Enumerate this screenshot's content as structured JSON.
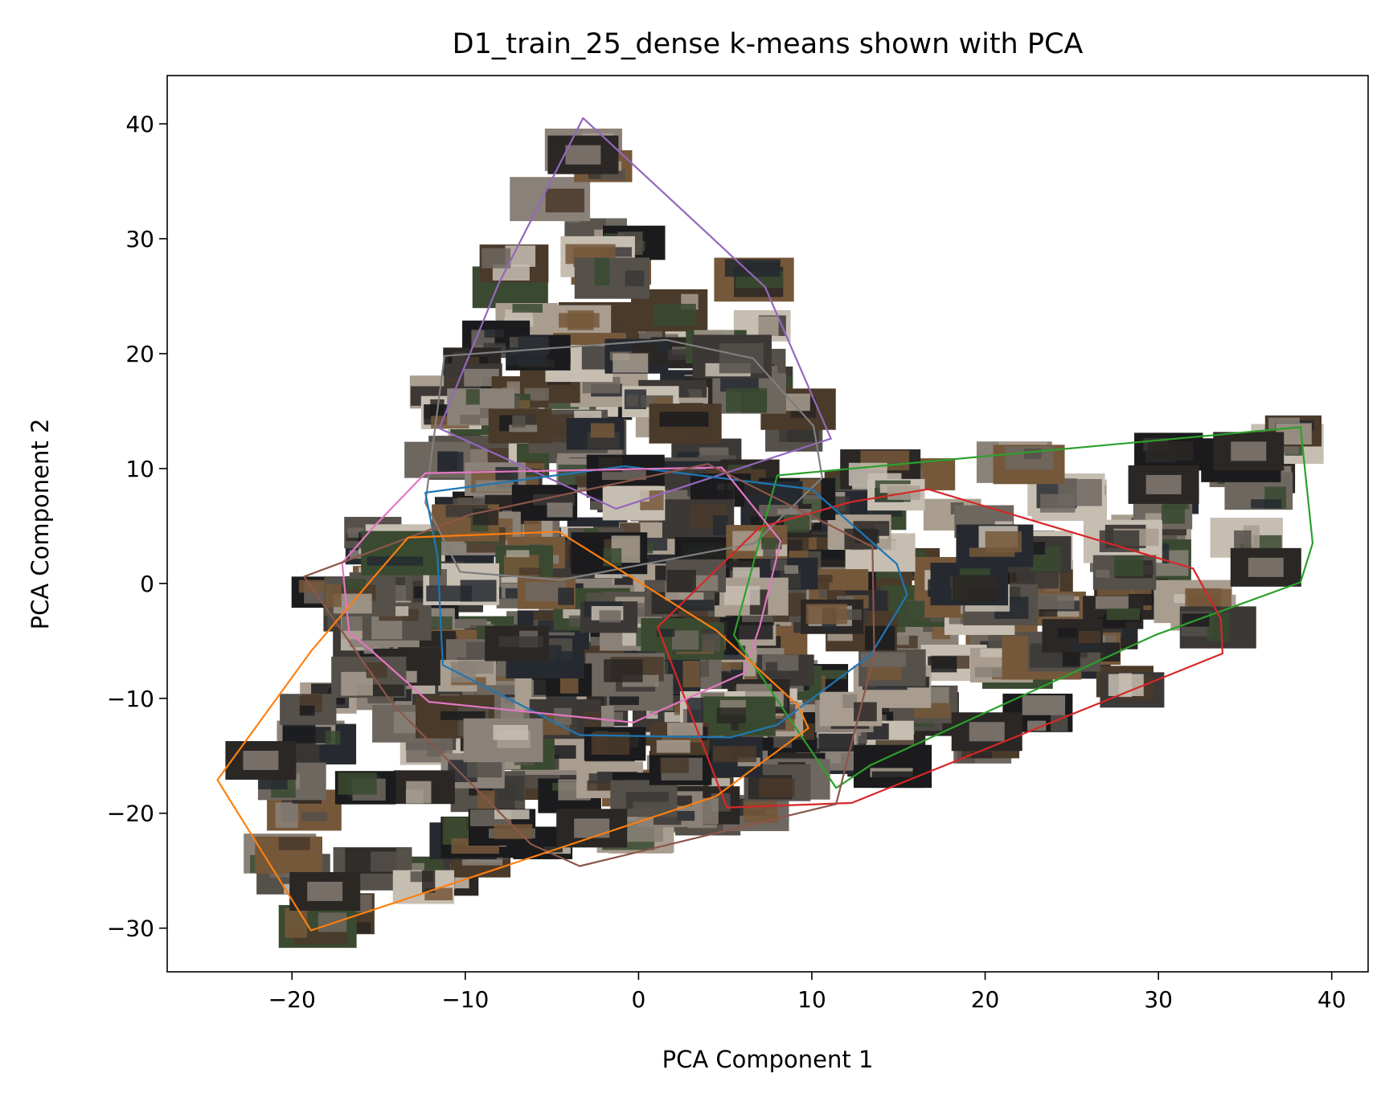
{
  "chart_data": {
    "type": "scatter",
    "title": "D1_train_25_dense k-means shown with PCA",
    "xlabel": "PCA Component 1",
    "ylabel": "PCA Component 2",
    "xlim": [
      -27.2,
      42.1
    ],
    "ylim": [
      -33.8,
      44.2
    ],
    "xticks": [
      -20,
      -10,
      0,
      10,
      20,
      30,
      40
    ],
    "yticks": [
      -30,
      -20,
      -10,
      0,
      10,
      20,
      30,
      40
    ],
    "xtick_labels": [
      "−20",
      "−10",
      "0",
      "10",
      "20",
      "30",
      "40"
    ],
    "ytick_labels": [
      "−30",
      "−20",
      "−10",
      "0",
      "10",
      "20",
      "30",
      "40"
    ],
    "grid": false,
    "legend": "none",
    "markers": "image thumbnails of kitchen scenes",
    "series": [
      {
        "color": "#9467bd",
        "hull": [
          [
            -3.2,
            40.5
          ],
          [
            7.3,
            25.8
          ],
          [
            11.1,
            12.6
          ],
          [
            -1.3,
            6.5
          ],
          [
            -11.5,
            13.5
          ],
          [
            -8.1,
            26.0
          ]
        ]
      },
      {
        "color": "#7f7f7f",
        "hull": [
          [
            1.6,
            21.2
          ],
          [
            -11.2,
            19.8
          ],
          [
            -12.3,
            7.0
          ],
          [
            -10.3,
            1.0
          ],
          [
            -4.5,
            0.3
          ],
          [
            6.7,
            3.5
          ],
          [
            10.6,
            9.2
          ],
          [
            10.1,
            13.7
          ],
          [
            6.6,
            19.6
          ]
        ]
      },
      {
        "color": "#2ca02c",
        "hull": [
          [
            8.0,
            9.4
          ],
          [
            38.2,
            13.6
          ],
          [
            38.9,
            3.5
          ],
          [
            38.2,
            0.1
          ],
          [
            29.8,
            -4.5
          ],
          [
            13.4,
            -15.8
          ],
          [
            11.4,
            -17.8
          ],
          [
            8.2,
            -10.6
          ],
          [
            5.5,
            -4.5
          ]
        ]
      },
      {
        "color": "#d62728",
        "hull": [
          [
            12.3,
            7.1
          ],
          [
            16.7,
            8.2
          ],
          [
            32.0,
            1.3
          ],
          [
            33.6,
            -3.1
          ],
          [
            33.7,
            -6.1
          ],
          [
            12.3,
            -19.1
          ],
          [
            5.1,
            -19.5
          ],
          [
            1.1,
            -3.8
          ],
          [
            7.0,
            4.9
          ]
        ]
      },
      {
        "color": "#1f77b4",
        "hull": [
          [
            -0.8,
            10.2
          ],
          [
            10.0,
            8.2
          ],
          [
            14.9,
            1.7
          ],
          [
            15.5,
            -1.0
          ],
          [
            13.4,
            -6.2
          ],
          [
            8.0,
            -12.3
          ],
          [
            5.3,
            -13.4
          ],
          [
            -3.4,
            -13.2
          ],
          [
            -11.3,
            -7.1
          ],
          [
            -11.6,
            2.4
          ],
          [
            -12.3,
            7.9
          ]
        ]
      },
      {
        "color": "#e377c2",
        "hull": [
          [
            -12.3,
            9.6
          ],
          [
            4.8,
            10.1
          ],
          [
            8.2,
            3.7
          ],
          [
            7.0,
            -3.7
          ],
          [
            6.1,
            -7.8
          ],
          [
            -0.3,
            -12.1
          ],
          [
            -12.1,
            -10.3
          ],
          [
            -15.6,
            -5.6
          ],
          [
            -16.7,
            -4.3
          ],
          [
            -17.1,
            1.8
          ],
          [
            -15.3,
            4.9
          ]
        ]
      },
      {
        "color": "#8c564b",
        "hull": [
          [
            -19.3,
            0.6
          ],
          [
            -9.7,
            6.0
          ],
          [
            4.0,
            10.4
          ],
          [
            13.5,
            3.2
          ],
          [
            13.6,
            -6.2
          ],
          [
            11.4,
            -19.2
          ],
          [
            -3.4,
            -24.6
          ],
          [
            -6.2,
            -22.7
          ],
          [
            -14.2,
            -10.5
          ]
        ]
      },
      {
        "color": "#ff7f0e",
        "hull": [
          [
            -13.3,
            4.0
          ],
          [
            -4.6,
            4.5
          ],
          [
            4.5,
            -4.1
          ],
          [
            9.2,
            -10.6
          ],
          [
            9.8,
            -12.6
          ],
          [
            4.5,
            -18.5
          ],
          [
            -18.9,
            -30.2
          ],
          [
            -24.3,
            -17.1
          ],
          [
            -18.9,
            -5.9
          ],
          [
            -15.3,
            0.5
          ]
        ]
      }
    ]
  }
}
